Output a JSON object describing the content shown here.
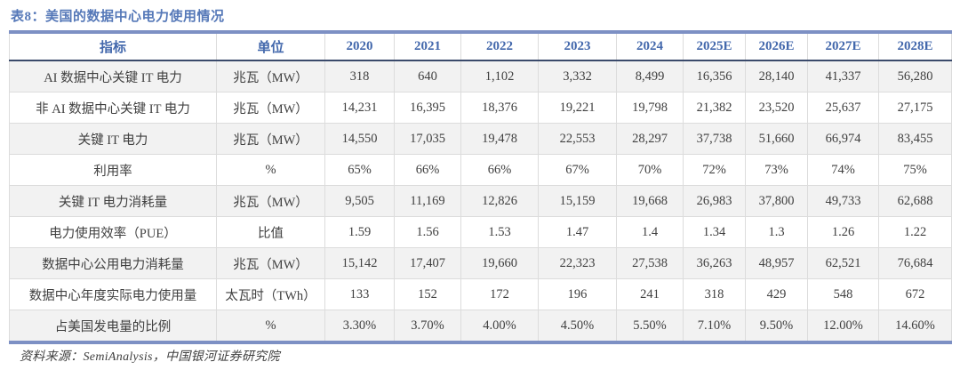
{
  "page": {
    "title": "表8：美国的数据中心电力使用情况",
    "source": "资料来源：SemiAnalysis，中国银河证券研究院"
  },
  "colors": {
    "accent_border_blue": "#7D90C4",
    "header_text_blue": "#4368AC",
    "title_blue": "#5578B8",
    "header_divider_navy": "#3A4A6B",
    "row_stripe_gray": "#F2F2F2",
    "cell_border_gray": "#DCDCDC",
    "body_text": "#404040"
  },
  "chart_data": {
    "type": "table",
    "title": "表8：美国的数据中心电力使用情况",
    "source": "资料来源：SemiAnalysis，中国银河证券研究院",
    "columns": [
      "指标",
      "单位",
      "2020",
      "2021",
      "2022",
      "2023",
      "2024",
      "2025E",
      "2026E",
      "2027E",
      "2028E"
    ],
    "rows": [
      [
        "AI 数据中心关键 IT 电力",
        "兆瓦（MW）",
        "318",
        "640",
        "1,102",
        "3,332",
        "8,499",
        "16,356",
        "28,140",
        "41,337",
        "56,280"
      ],
      [
        "非 AI 数据中心关键 IT 电力",
        "兆瓦（MW）",
        "14,231",
        "16,395",
        "18,376",
        "19,221",
        "19,798",
        "21,382",
        "23,520",
        "25,637",
        "27,175"
      ],
      [
        "关键 IT 电力",
        "兆瓦（MW）",
        "14,550",
        "17,035",
        "19,478",
        "22,553",
        "28,297",
        "37,738",
        "51,660",
        "66,974",
        "83,455"
      ],
      [
        "利用率",
        "%",
        "65%",
        "66%",
        "66%",
        "67%",
        "70%",
        "72%",
        "73%",
        "74%",
        "75%"
      ],
      [
        "关键 IT 电力消耗量",
        "兆瓦（MW）",
        "9,505",
        "11,169",
        "12,826",
        "15,159",
        "19,668",
        "26,983",
        "37,800",
        "49,733",
        "62,688"
      ],
      [
        "电力使用效率（PUE）",
        "比值",
        "1.59",
        "1.56",
        "1.53",
        "1.47",
        "1.4",
        "1.34",
        "1.3",
        "1.26",
        "1.22"
      ],
      [
        "数据中心公用电力消耗量",
        "兆瓦（MW）",
        "15,142",
        "17,407",
        "19,660",
        "22,323",
        "27,538",
        "36,263",
        "48,957",
        "62,521",
        "76,684"
      ],
      [
        "数据中心年度实际电力使用量",
        "太瓦时（TWh）",
        "133",
        "152",
        "172",
        "196",
        "241",
        "318",
        "429",
        "548",
        "672"
      ],
      [
        "占美国发电量的比例",
        "%",
        "3.30%",
        "3.70%",
        "4.00%",
        "4.50%",
        "5.50%",
        "7.10%",
        "9.50%",
        "12.00%",
        "14.60%"
      ]
    ]
  }
}
